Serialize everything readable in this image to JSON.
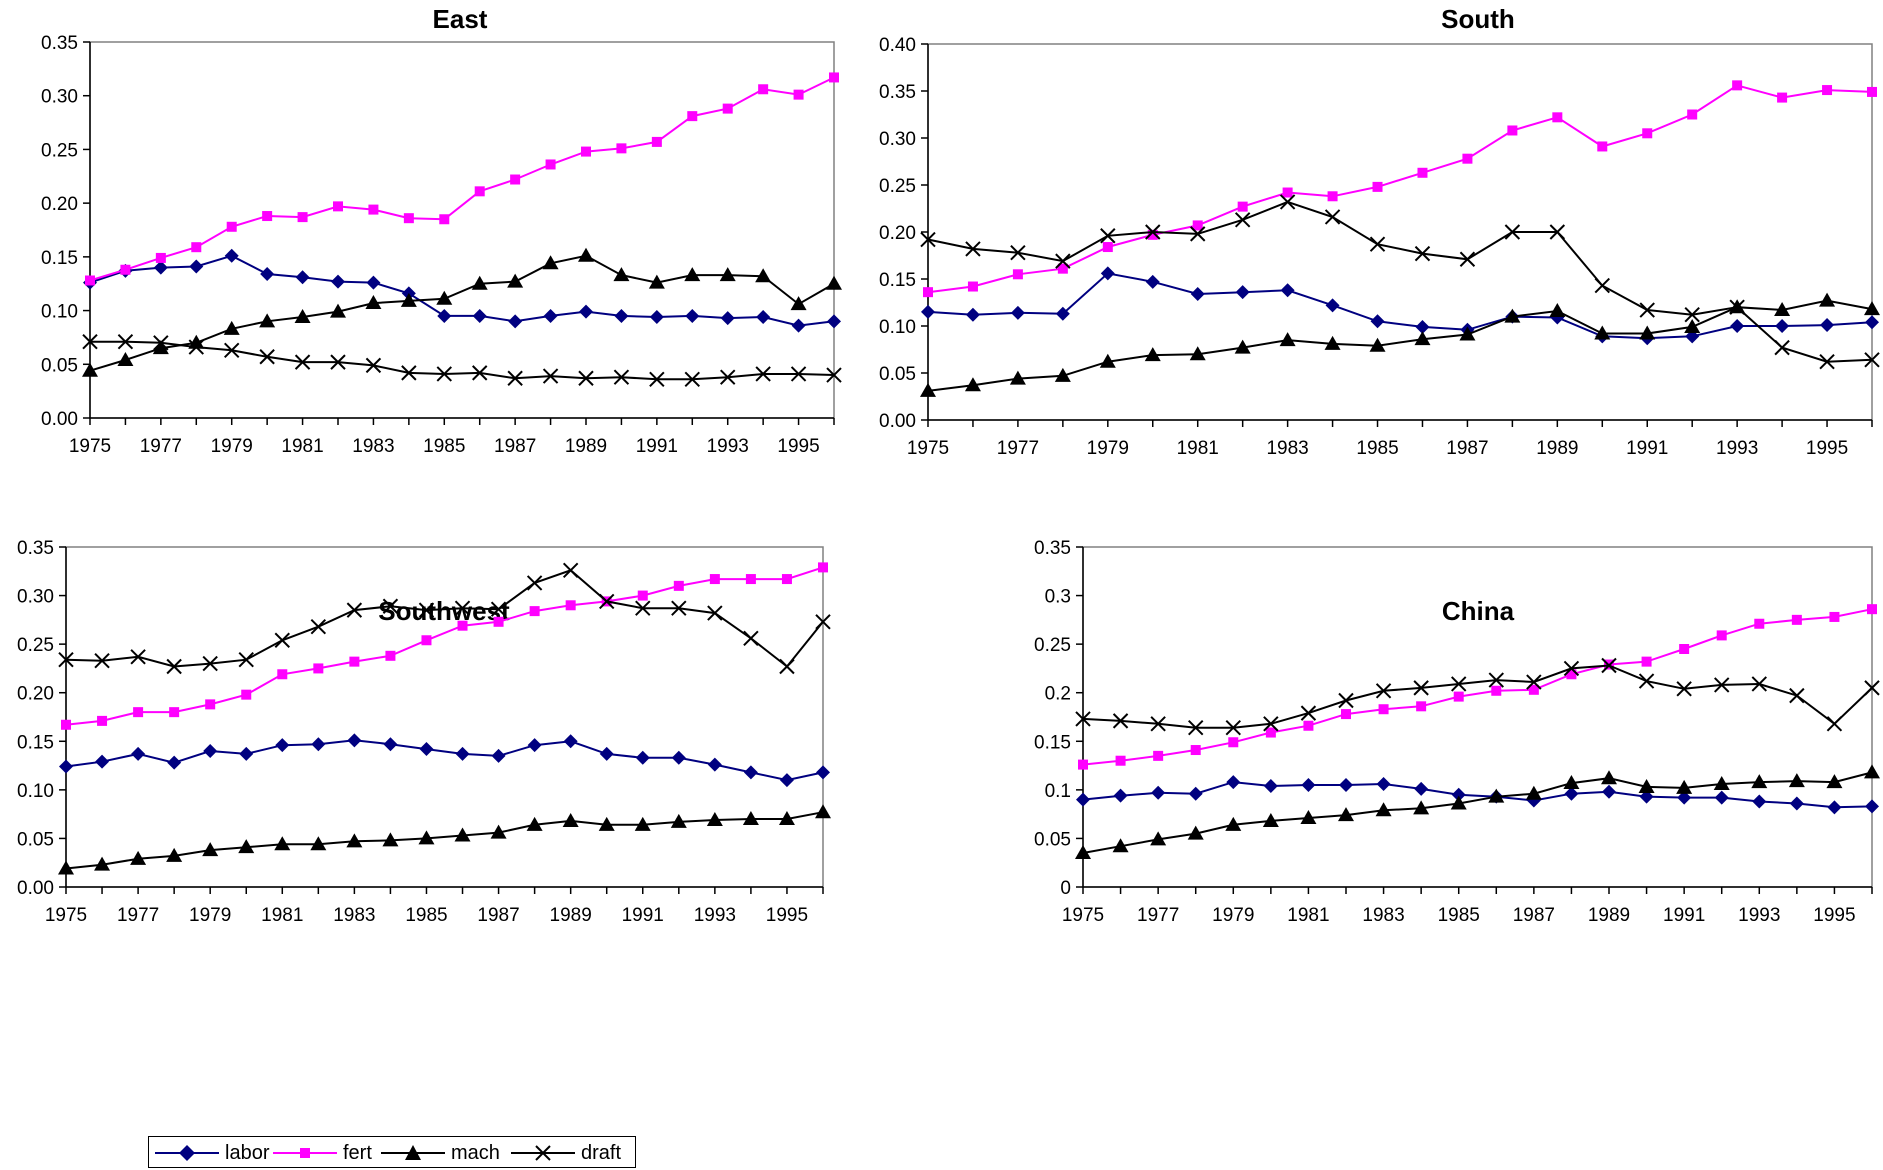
{
  "legend": {
    "labor": "labor",
    "fert": "fert",
    "mach": "mach",
    "draft": "draft"
  },
  "colors": {
    "labor": "#000080",
    "fert": "#ff00ff",
    "mach": "#000000",
    "draft": "#000000"
  },
  "chart_data": [
    {
      "type": "line",
      "title": "East",
      "x": [
        1975,
        1976,
        1977,
        1978,
        1979,
        1980,
        1981,
        1982,
        1983,
        1984,
        1985,
        1986,
        1987,
        1988,
        1989,
        1990,
        1991,
        1992,
        1993,
        1994,
        1995,
        1996
      ],
      "xticks": [
        "1975",
        "1977",
        "1979",
        "1981",
        "1983",
        "1985",
        "1987",
        "1989",
        "1991",
        "1993",
        "1995"
      ],
      "yticks": [
        "0.00",
        "0.05",
        "0.10",
        "0.15",
        "0.20",
        "0.25",
        "0.30",
        "0.35"
      ],
      "ylim": [
        0,
        0.35
      ],
      "series": [
        {
          "name": "labor",
          "values": [
            0.126,
            0.137,
            0.14,
            0.141,
            0.151,
            0.134,
            0.131,
            0.127,
            0.126,
            0.116,
            0.095,
            0.095,
            0.09,
            0.095,
            0.099,
            0.095,
            0.094,
            0.095,
            0.093,
            0.094,
            0.086,
            0.09
          ]
        },
        {
          "name": "fert",
          "values": [
            0.128,
            0.138,
            0.149,
            0.159,
            0.178,
            0.188,
            0.187,
            0.197,
            0.194,
            0.186,
            0.185,
            0.211,
            0.222,
            0.236,
            0.248,
            0.251,
            0.257,
            0.281,
            0.288,
            0.306,
            0.301,
            0.317
          ]
        },
        {
          "name": "mach",
          "values": [
            0.044,
            0.054,
            0.065,
            0.07,
            0.083,
            0.09,
            0.094,
            0.099,
            0.107,
            0.109,
            0.111,
            0.125,
            0.127,
            0.144,
            0.151,
            0.133,
            0.126,
            0.133,
            0.133,
            0.132,
            0.106,
            0.125
          ]
        },
        {
          "name": "draft",
          "values": [
            0.071,
            0.071,
            0.07,
            0.066,
            0.063,
            0.057,
            0.052,
            0.052,
            0.049,
            0.042,
            0.041,
            0.042,
            0.037,
            0.039,
            0.037,
            0.038,
            0.036,
            0.036,
            0.038,
            0.041,
            0.041,
            0.04
          ]
        }
      ]
    },
    {
      "type": "line",
      "title": "South",
      "x": [
        1975,
        1976,
        1977,
        1978,
        1979,
        1980,
        1981,
        1982,
        1983,
        1984,
        1985,
        1986,
        1987,
        1988,
        1989,
        1990,
        1991,
        1992,
        1993,
        1994,
        1995,
        1996
      ],
      "xticks": [
        "1975",
        "1977",
        "1979",
        "1981",
        "1983",
        "1985",
        "1987",
        "1989",
        "1991",
        "1993",
        "1995"
      ],
      "yticks": [
        "0.00",
        "0.05",
        "0.10",
        "0.15",
        "0.20",
        "0.25",
        "0.30",
        "0.35",
        "0.40"
      ],
      "ylim": [
        0,
        0.4
      ],
      "series": [
        {
          "name": "labor",
          "values": [
            0.115,
            0.112,
            0.114,
            0.113,
            0.156,
            0.147,
            0.134,
            0.136,
            0.138,
            0.122,
            0.105,
            0.099,
            0.096,
            0.11,
            0.109,
            0.089,
            0.087,
            0.089,
            0.1,
            0.1,
            0.101,
            0.104
          ]
        },
        {
          "name": "fert",
          "values": [
            0.136,
            0.142,
            0.155,
            0.161,
            0.184,
            0.197,
            0.207,
            0.227,
            0.242,
            0.238,
            0.248,
            0.263,
            0.278,
            0.308,
            0.322,
            0.291,
            0.305,
            0.325,
            0.356,
            0.343,
            0.351,
            0.349
          ]
        },
        {
          "name": "mach",
          "values": [
            0.031,
            0.037,
            0.044,
            0.047,
            0.062,
            0.069,
            0.07,
            0.077,
            0.085,
            0.081,
            0.079,
            0.086,
            0.091,
            0.11,
            0.116,
            0.092,
            0.092,
            0.099,
            0.12,
            0.117,
            0.127,
            0.118
          ]
        },
        {
          "name": "draft",
          "values": [
            0.192,
            0.182,
            0.178,
            0.169,
            0.196,
            0.2,
            0.198,
            0.213,
            0.232,
            0.216,
            0.187,
            0.177,
            0.171,
            0.2,
            0.2,
            0.143,
            0.117,
            0.112,
            0.12,
            0.077,
            0.062,
            0.064
          ]
        }
      ]
    },
    {
      "type": "line",
      "title": "Southwest",
      "x": [
        1975,
        1976,
        1977,
        1978,
        1979,
        1980,
        1981,
        1982,
        1983,
        1984,
        1985,
        1986,
        1987,
        1988,
        1989,
        1990,
        1991,
        1992,
        1993,
        1994,
        1995,
        1996
      ],
      "xticks": [
        "1975",
        "1977",
        "1979",
        "1981",
        "1983",
        "1985",
        "1987",
        "1989",
        "1991",
        "1993",
        "1995"
      ],
      "yticks": [
        "0.00",
        "0.05",
        "0.10",
        "0.15",
        "0.20",
        "0.25",
        "0.30",
        "0.35"
      ],
      "ylim": [
        0,
        0.35
      ],
      "series": [
        {
          "name": "labor",
          "values": [
            0.124,
            0.129,
            0.137,
            0.128,
            0.14,
            0.137,
            0.146,
            0.147,
            0.151,
            0.147,
            0.142,
            0.137,
            0.135,
            0.146,
            0.15,
            0.137,
            0.133,
            0.133,
            0.126,
            0.118,
            0.11,
            0.118
          ]
        },
        {
          "name": "fert",
          "values": [
            0.167,
            0.171,
            0.18,
            0.18,
            0.188,
            0.198,
            0.219,
            0.225,
            0.232,
            0.238,
            0.254,
            0.269,
            0.273,
            0.284,
            0.29,
            0.294,
            0.3,
            0.31,
            0.317,
            0.317,
            0.317,
            0.329
          ]
        },
        {
          "name": "mach",
          "values": [
            0.019,
            0.023,
            0.029,
            0.032,
            0.038,
            0.041,
            0.044,
            0.044,
            0.047,
            0.048,
            0.05,
            0.053,
            0.056,
            0.064,
            0.068,
            0.064,
            0.064,
            0.067,
            0.069,
            0.07,
            0.07,
            0.077
          ]
        },
        {
          "name": "draft",
          "values": [
            0.234,
            0.233,
            0.237,
            0.227,
            0.23,
            0.234,
            0.254,
            0.268,
            0.285,
            0.289,
            0.285,
            0.287,
            0.286,
            0.313,
            0.326,
            0.294,
            0.287,
            0.287,
            0.282,
            0.256,
            0.227,
            0.273
          ]
        }
      ]
    },
    {
      "type": "line",
      "title": "China",
      "x": [
        1975,
        1976,
        1977,
        1978,
        1979,
        1980,
        1981,
        1982,
        1983,
        1984,
        1985,
        1986,
        1987,
        1988,
        1989,
        1990,
        1991,
        1992,
        1993,
        1994,
        1995,
        1996
      ],
      "xticks": [
        "1975",
        "1977",
        "1979",
        "1981",
        "1983",
        "1985",
        "1987",
        "1989",
        "1991",
        "1993",
        "1995"
      ],
      "yticks": [
        "0",
        "0.05",
        "0.1",
        "0.15",
        "0.2",
        "0.25",
        "0.3",
        "0.35"
      ],
      "ylim": [
        0,
        0.35
      ],
      "series": [
        {
          "name": "labor",
          "values": [
            0.09,
            0.094,
            0.097,
            0.096,
            0.108,
            0.104,
            0.105,
            0.105,
            0.106,
            0.101,
            0.095,
            0.093,
            0.089,
            0.096,
            0.098,
            0.093,
            0.092,
            0.092,
            0.088,
            0.086,
            0.082,
            0.083
          ]
        },
        {
          "name": "fert",
          "values": [
            0.126,
            0.13,
            0.135,
            0.141,
            0.149,
            0.159,
            0.166,
            0.178,
            0.183,
            0.186,
            0.196,
            0.202,
            0.203,
            0.219,
            0.229,
            0.232,
            0.245,
            0.259,
            0.271,
            0.275,
            0.278,
            0.286
          ]
        },
        {
          "name": "mach",
          "values": [
            0.035,
            0.042,
            0.049,
            0.055,
            0.064,
            0.068,
            0.071,
            0.074,
            0.079,
            0.081,
            0.086,
            0.093,
            0.096,
            0.107,
            0.112,
            0.103,
            0.102,
            0.106,
            0.108,
            0.109,
            0.108,
            0.118
          ]
        },
        {
          "name": "draft",
          "values": [
            0.173,
            0.171,
            0.168,
            0.164,
            0.164,
            0.168,
            0.179,
            0.192,
            0.202,
            0.205,
            0.209,
            0.213,
            0.211,
            0.225,
            0.228,
            0.212,
            0.204,
            0.208,
            0.209,
            0.197,
            0.168,
            0.205
          ]
        }
      ]
    }
  ]
}
